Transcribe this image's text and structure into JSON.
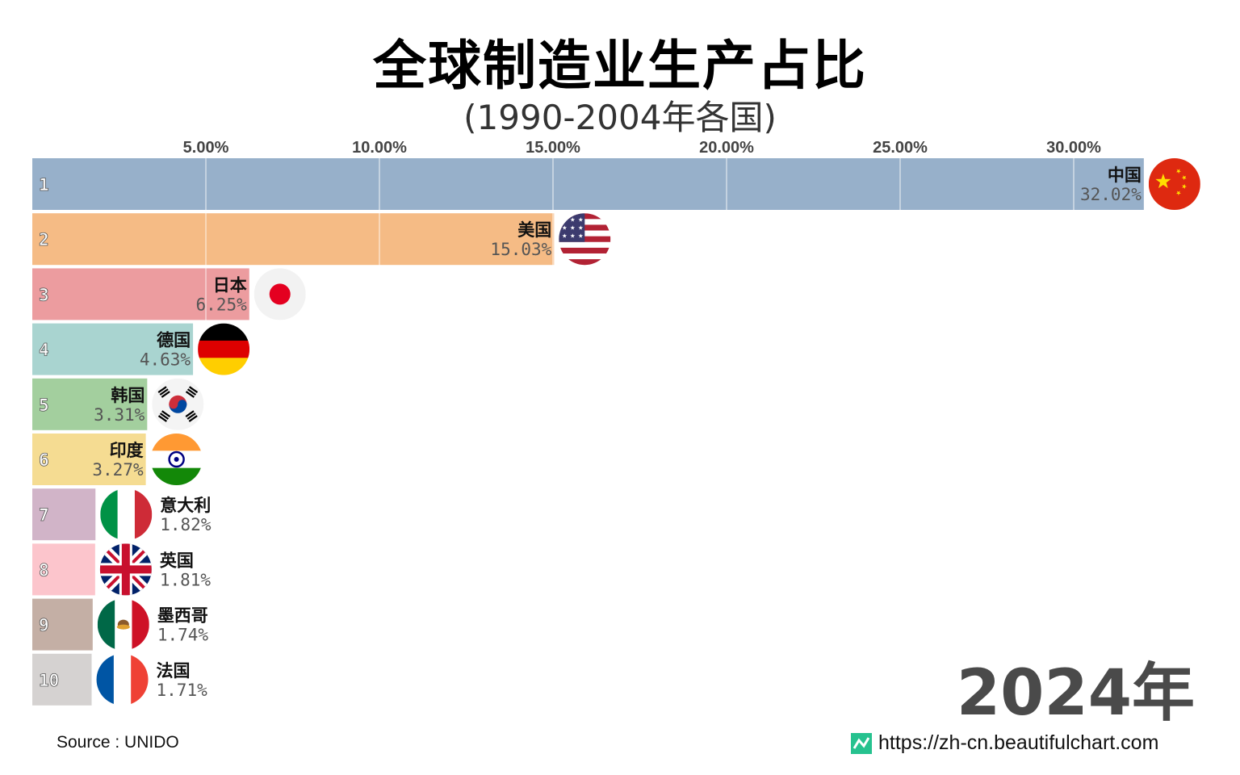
{
  "title": "全球制造业生产占比",
  "subtitle": "(1990-2004年各国)",
  "year_label": "2024年",
  "source": "Source : UNIDO",
  "url": "https://zh-cn.beautifulchart.com",
  "chart_data": {
    "type": "bar",
    "orientation": "horizontal",
    "title": "全球制造业生产占比",
    "xlim": [
      0,
      32.2
    ],
    "x_ticks": [
      5,
      10,
      15,
      20,
      25,
      30
    ],
    "x_tick_labels": [
      "5.00%",
      "10.00%",
      "15.00%",
      "20.00%",
      "25.00%",
      "30.00%"
    ],
    "bars": [
      {
        "rank": "1",
        "country": "中国",
        "value": 32.02,
        "label": "32.02%",
        "color": "#97b0ca",
        "flag": "china-flag-icon"
      },
      {
        "rank": "2",
        "country": "美国",
        "value": 15.03,
        "label": "15.03%",
        "color": "#f5bb85",
        "flag": "usa-flag-icon"
      },
      {
        "rank": "3",
        "country": "日本",
        "value": 6.25,
        "label": "6.25%",
        "color": "#ec9c9f",
        "flag": "japan-flag-icon"
      },
      {
        "rank": "4",
        "country": "德国",
        "value": 4.63,
        "label": "4.63%",
        "color": "#a9d4d0",
        "flag": "germany-flag-icon"
      },
      {
        "rank": "5",
        "country": "韩国",
        "value": 3.31,
        "label": "3.31%",
        "color": "#a3cf9e",
        "flag": "korea-flag-icon"
      },
      {
        "rank": "6",
        "country": "印度",
        "value": 3.27,
        "label": "3.27%",
        "color": "#f5dc92",
        "flag": "india-flag-icon"
      },
      {
        "rank": "7",
        "country": "意大利",
        "value": 1.82,
        "label": "1.82%",
        "color": "#d1b4c8",
        "flag": "italy-flag-icon"
      },
      {
        "rank": "8",
        "country": "英国",
        "value": 1.81,
        "label": "1.81%",
        "color": "#fcc5cc",
        "flag": "uk-flag-icon"
      },
      {
        "rank": "9",
        "country": "墨西哥",
        "value": 1.74,
        "label": "1.74%",
        "color": "#c4afa5",
        "flag": "mexico-flag-icon"
      },
      {
        "rank": "10",
        "country": "法国",
        "value": 1.71,
        "label": "1.71%",
        "color": "#d5d2d1",
        "flag": "france-flag-icon"
      }
    ]
  }
}
